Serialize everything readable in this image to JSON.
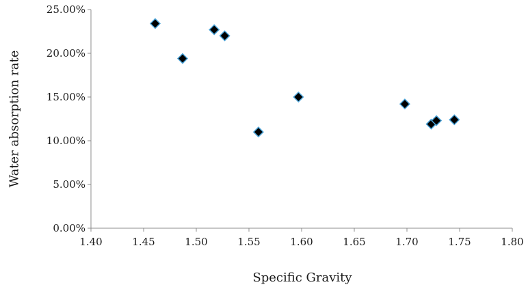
{
  "chart_data": {
    "type": "scatter",
    "title": "",
    "xlabel": "Specific Gravity",
    "ylabel": "Water absorption rate",
    "xlim": [
      1.4,
      1.8
    ],
    "ylim": [
      0,
      0.25
    ],
    "x_ticks": [
      "1.40",
      "1.45",
      "1.50",
      "1.55",
      "1.60",
      "1.65",
      "1.70",
      "1.75",
      "1.80"
    ],
    "y_ticks": [
      "0.00%",
      "5.00%",
      "10.00%",
      "15.00%",
      "20.00%",
      "25.00%"
    ],
    "grid": false,
    "legend": "none",
    "marker": "diamond",
    "marker_fill": "#000000",
    "marker_edge": "#4aa3d8",
    "axis_color": "#8c8c8c",
    "series": [
      {
        "points": [
          {
            "x": 1.461,
            "y": 0.234
          },
          {
            "x": 1.487,
            "y": 0.194
          },
          {
            "x": 1.517,
            "y": 0.227
          },
          {
            "x": 1.527,
            "y": 0.22
          },
          {
            "x": 1.559,
            "y": 0.11
          },
          {
            "x": 1.597,
            "y": 0.15
          },
          {
            "x": 1.698,
            "y": 0.142
          },
          {
            "x": 1.723,
            "y": 0.119
          },
          {
            "x": 1.728,
            "y": 0.123
          },
          {
            "x": 1.745,
            "y": 0.124
          }
        ]
      }
    ]
  }
}
